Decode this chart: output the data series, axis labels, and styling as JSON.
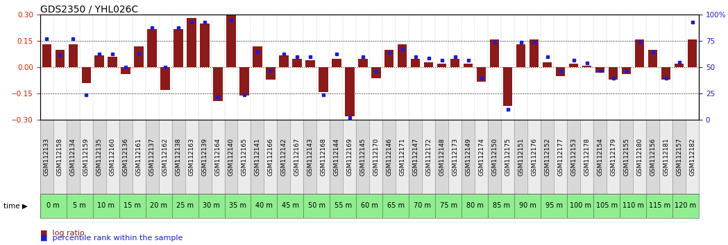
{
  "title": "GDS2350 / YHL026C",
  "gsm_labels": [
    "GSM112133",
    "GSM112158",
    "GSM112134",
    "GSM112159",
    "GSM112135",
    "GSM112160",
    "GSM112136",
    "GSM112161",
    "GSM112137",
    "GSM112162",
    "GSM112138",
    "GSM112163",
    "GSM112139",
    "GSM112164",
    "GSM112140",
    "GSM112165",
    "GSM112141",
    "GSM112166",
    "GSM112142",
    "GSM112167",
    "GSM112143",
    "GSM112168",
    "GSM112144",
    "GSM112169",
    "GSM112145",
    "GSM112170",
    "GSM112146",
    "GSM112171",
    "GSM112147",
    "GSM112172",
    "GSM112148",
    "GSM112173",
    "GSM112149",
    "GSM112174",
    "GSM112150",
    "GSM112175",
    "GSM112151",
    "GSM112176",
    "GSM112152",
    "GSM112177",
    "GSM112153",
    "GSM112178",
    "GSM112154",
    "GSM112179",
    "GSM112155",
    "GSM112180",
    "GSM112156",
    "GSM112181",
    "GSM112157",
    "GSM112182"
  ],
  "time_labels": [
    "0 m",
    "5 m",
    "10 m",
    "15 m",
    "20 m",
    "25 m",
    "30 m",
    "35 m",
    "40 m",
    "45 m",
    "50 m",
    "55 m",
    "60 m",
    "65 m",
    "70 m",
    "75 m",
    "80 m",
    "85 m",
    "90 m",
    "95 m",
    "100 m",
    "105 m",
    "110 m",
    "115 m",
    "120 m"
  ],
  "log_ratio": [
    0.13,
    0.1,
    0.13,
    -0.09,
    0.07,
    0.06,
    -0.04,
    0.12,
    0.22,
    -0.13,
    0.22,
    0.28,
    0.25,
    -0.19,
    0.3,
    -0.16,
    0.12,
    -0.07,
    0.07,
    0.05,
    0.04,
    -0.14,
    0.05,
    -0.28,
    0.05,
    -0.06,
    0.1,
    0.13,
    0.05,
    0.03,
    0.02,
    0.05,
    0.02,
    -0.08,
    0.16,
    -0.22,
    0.13,
    0.16,
    0.03,
    -0.05,
    0.02,
    0.01,
    -0.03,
    -0.07,
    -0.04,
    0.16,
    0.1,
    -0.07,
    0.02,
    0.16
  ],
  "percentile": [
    77,
    62,
    77,
    24,
    63,
    63,
    50,
    63,
    88,
    50,
    88,
    93,
    93,
    22,
    95,
    24,
    65,
    47,
    63,
    60,
    60,
    24,
    63,
    2,
    60,
    46,
    64,
    67,
    60,
    59,
    57,
    60,
    57,
    40,
    74,
    10,
    74,
    74,
    60,
    46,
    57,
    54,
    47,
    40,
    47,
    74,
    65,
    40,
    55,
    93
  ],
  "bar_color": "#8B1A1A",
  "dot_color": "#1C1CD8",
  "bg_color": "#FFFFFF",
  "zero_line_color": "#CC2200",
  "ylim": [
    -0.3,
    0.3
  ],
  "y2lim": [
    0,
    100
  ],
  "yticks": [
    -0.3,
    -0.15,
    0.0,
    0.15,
    0.3
  ],
  "y2ticks": [
    0,
    25,
    50,
    75,
    100
  ],
  "hlines_black": [
    0.15,
    -0.15
  ],
  "title_fontsize": 10,
  "tick_fontsize": 6.5,
  "label_fontsize": 7.5,
  "legend_fontsize": 8,
  "gsm_cell_color_even": "#D8D8D8",
  "gsm_cell_color_odd": "#EBEBEB",
  "time_cell_color": "#90EE90",
  "time_cell_color_alt": "#A8F0A8"
}
